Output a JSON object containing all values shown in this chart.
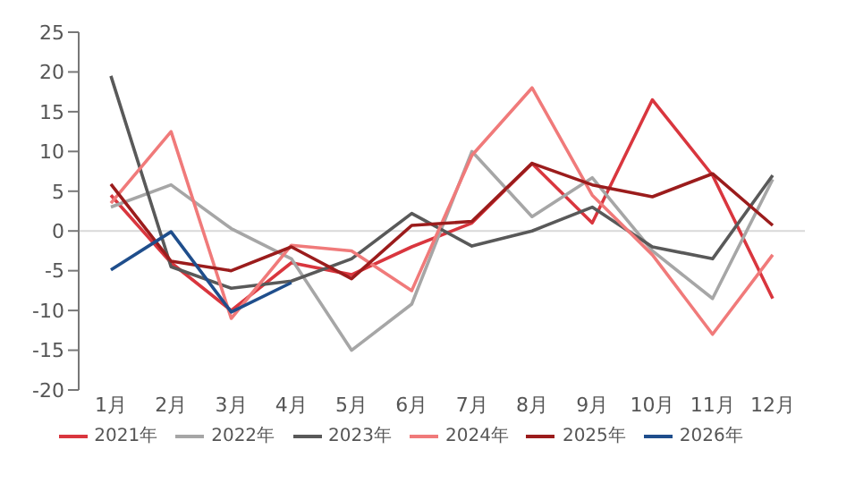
{
  "chart_data": {
    "type": "line",
    "categories": [
      "1月",
      "2月",
      "3月",
      "4月",
      "5月",
      "6月",
      "7月",
      "8月",
      "9月",
      "10月",
      "11月",
      "12月"
    ],
    "series": [
      {
        "name": "2021年",
        "color": "#d9363e",
        "values": [
          4.5,
          -4,
          -10,
          -4,
          -5.5,
          -2,
          1,
          8.5,
          1,
          16.5,
          7,
          -8.5
        ]
      },
      {
        "name": "2022年",
        "color": "#a6a6a6",
        "values": [
          3,
          5.8,
          0.3,
          -3.5,
          -15,
          -9.2,
          10,
          1.8,
          6.7,
          -2.5,
          -8.5,
          6.5
        ]
      },
      {
        "name": "2023年",
        "color": "#595959",
        "values": [
          19.5,
          -4.5,
          -7.2,
          -6.3,
          -3.5,
          2.2,
          -1.9,
          0,
          3,
          -2,
          -3.5,
          7
        ]
      },
      {
        "name": "2024年",
        "color": "#f07a7a",
        "values": [
          3.5,
          12.5,
          -11,
          -1.8,
          -2.5,
          -7.5,
          9.5,
          18,
          4.5,
          -3,
          -13,
          -3
        ]
      },
      {
        "name": "2025年",
        "color": "#9b1c1c",
        "values": [
          5.9,
          -3.8,
          -5,
          -2,
          -6,
          0.7,
          1.2,
          8.5,
          5.8,
          4.3,
          7.2,
          0.7
        ]
      },
      {
        "name": "2026年",
        "color": "#1f4e8c",
        "values": [
          -4.9,
          -0.1,
          -10.2,
          -6.5,
          null,
          null,
          null,
          null,
          null,
          null,
          null,
          null
        ]
      }
    ],
    "ylim": [
      -20,
      25
    ],
    "yticks": [
      -20,
      -15,
      -10,
      -5,
      0,
      5,
      10,
      15,
      20,
      25
    ],
    "ref_lines": [
      {
        "axis": "y",
        "value": 0,
        "color": "#d9d9d9"
      }
    ],
    "grid": false,
    "legend": "bottom",
    "marker": "none",
    "line_style": "solid"
  }
}
